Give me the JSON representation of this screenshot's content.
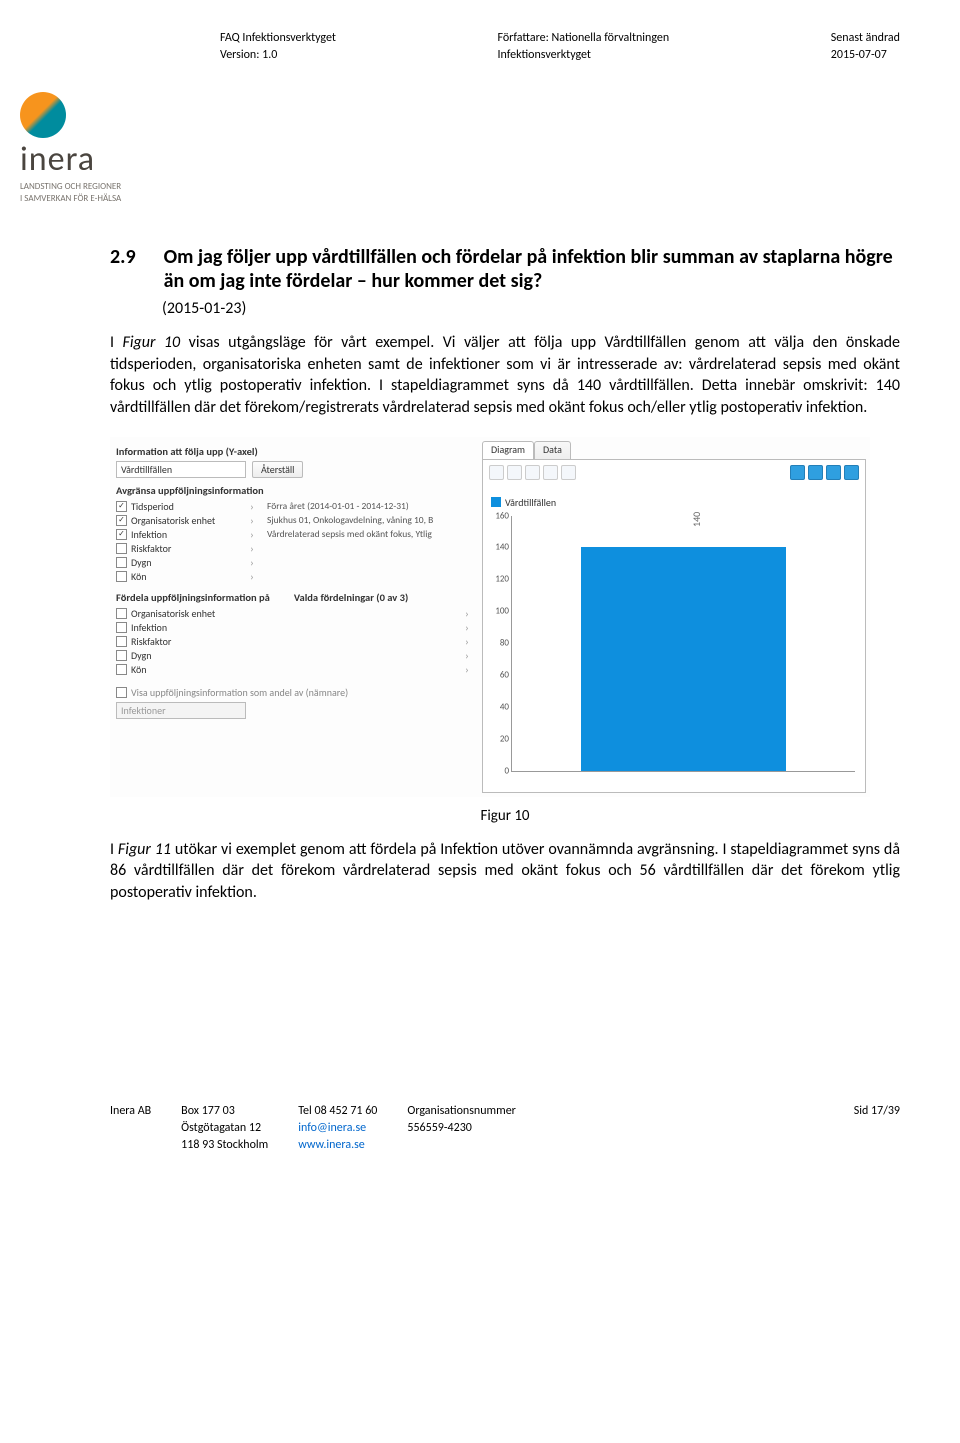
{
  "header": {
    "left_l1": "FAQ Infektionsverktyget",
    "left_l2": "Version: 1.0",
    "mid_l1": "Författare: Nationella förvaltningen",
    "mid_l2": "Infektionsverktyget",
    "right_l1": "Senast ändrad",
    "right_l2": "2015-07-07"
  },
  "logo": {
    "name": "inera",
    "sub1": "LANDSTING OCH REGIONER",
    "sub2": "I SAMVERKAN FÖR E-HÄLSA"
  },
  "section": {
    "num": "2.9",
    "title": "Om jag följer upp vårdtillfällen och fördelar på infektion blir summan av staplarna högre än om jag inte fördelar – hur kommer det sig?",
    "date": "(2015-01-23)"
  },
  "para1_a": "I ",
  "para1_fig": "Figur 10",
  "para1_b": " visas utgångsläge för vårt exempel. Vi väljer att följa upp Vårdtillfällen genom att välja den önskade tidsperioden, organisatoriska enheten samt de infektioner som vi är intresserade av: vårdrelaterad sepsis med okänt fokus och ytlig postoperativ infektion. I stapeldiagrammet syns då 140 vårdtillfällen. Detta innebär omskrivit: 140 vårdtillfällen där det förekom/registrerats vårdrelaterad sepsis med okänt fokus och/eller ytlig postoperativ infektion.",
  "app": {
    "panel1_title": "Information att följa upp (Y-axel)",
    "select_val": "Vårdtillfällen",
    "reset_btn": "Återställ",
    "panel2_title": "Avgränsa uppföljningsinformation",
    "filters": [
      {
        "checked": true,
        "label": "Tidsperiod",
        "val": "Förra året (2014-01-01 - 2014-12-31)"
      },
      {
        "checked": true,
        "label": "Organisatorisk enhet",
        "val": "Sjukhus 01, Onkologavdelning, våning 10, B"
      },
      {
        "checked": true,
        "label": "Infektion",
        "val": "Vårdrelaterad sepsis med okänt fokus, Ytlig"
      },
      {
        "checked": false,
        "label": "Riskfaktor",
        "val": ""
      },
      {
        "checked": false,
        "label": "Dygn",
        "val": ""
      },
      {
        "checked": false,
        "label": "Kön",
        "val": ""
      }
    ],
    "panel3_left": "Fördela uppföljningsinformation på",
    "panel3_right": "Valda fördelningar (0 av 3)",
    "dist": [
      "Organisatorisk enhet",
      "Infektion",
      "Riskfaktor",
      "Dygn",
      "Kön"
    ],
    "ghost_cb": "Visa uppföljningsinformation som andel av (nämnare)",
    "ghost_sel": "Infektioner",
    "tab_diagram": "Diagram",
    "tab_data": "Data",
    "legend": "Vårdtillfällen",
    "yticks": [
      "0",
      "20",
      "40",
      "60",
      "80",
      "100",
      "120",
      "140",
      "160"
    ],
    "bar_value": 140,
    "bar_label": "140",
    "ymax": 160,
    "bar_color": "#0e8fde"
  },
  "caption10": "Figur 10",
  "para2_a": "I ",
  "para2_fig": "Figur 11",
  "para2_b": " utökar vi exemplet genom att fördela på Infektion utöver ovannämnda avgränsning. I stapeldiagrammet syns då 86 vårdtillfällen där det förekom vårdrelaterad sepsis med okänt fokus och 56 vårdtillfällen där det förekom ytlig postoperativ infektion.",
  "footer": {
    "company": "Inera AB",
    "addr1": "Box 177 03",
    "addr2": "Östgötagatan 12",
    "addr3": "118 93 Stockholm",
    "tel": "Tel 08 452 71 60",
    "email": "info@inera.se",
    "web": "www.inera.se",
    "org_lbl": "Organisationsnummer",
    "org_num": "556559-4230",
    "page": "Sid 17/39"
  }
}
